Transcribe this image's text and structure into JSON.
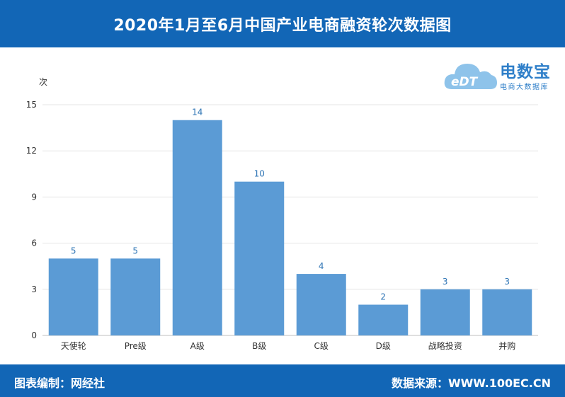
{
  "header": {
    "title": "2020年1月至6月中国产业电商融资轮次数据图"
  },
  "logo": {
    "brand": "电数宝",
    "subtitle": "电商大数据库",
    "mark": "eDT"
  },
  "footer": {
    "left": "图表编制：网经社",
    "right": "数据来源：WWW.100EC.CN"
  },
  "colors": {
    "bar": "#5b9bd5",
    "header": "#1266b6",
    "label": "#2f75b5"
  },
  "chart_data": {
    "type": "bar",
    "unit_label": "次",
    "categories": [
      "天使轮",
      "Pre级",
      "A级",
      "B级",
      "C级",
      "D级",
      "战略投资",
      "并购"
    ],
    "values": [
      5,
      5,
      14,
      10,
      4,
      2,
      3,
      3
    ],
    "ylim": [
      0,
      15
    ],
    "yticks": [
      0,
      3,
      6,
      9,
      12,
      15
    ],
    "grid": true,
    "data_labels": true
  }
}
